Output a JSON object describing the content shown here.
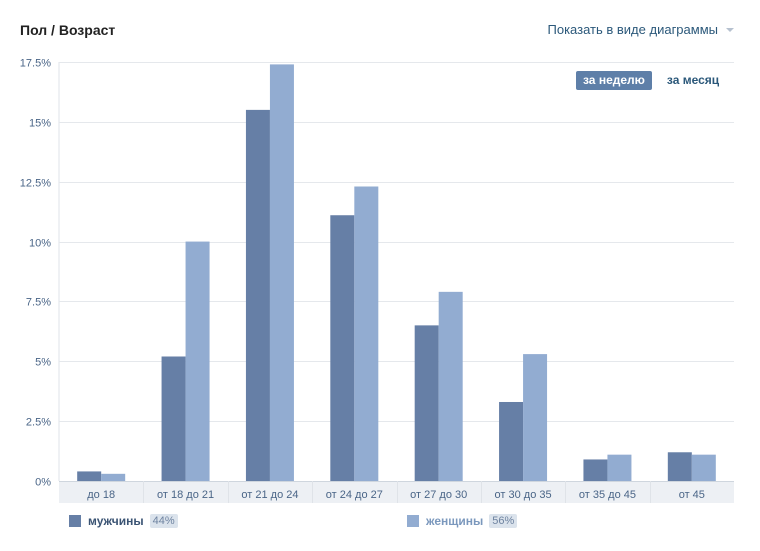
{
  "header": {
    "title": "Пол / Возраст",
    "view_switch_label": "Показать в виде диаграммы"
  },
  "period_tabs": [
    {
      "label": "за неделю",
      "active": true
    },
    {
      "label": "за месяц",
      "active": false
    }
  ],
  "colors": {
    "men": "#667fa6",
    "women": "#92acd1",
    "grid": "#e5e8ec",
    "axis_text": "#4a6587"
  },
  "chart_data": {
    "type": "bar",
    "title": "Пол / Возраст",
    "categories": [
      "до 18",
      "от 18 до 21",
      "от 21 до 24",
      "от 24 до 27",
      "от 27 до 30",
      "от 30 до 35",
      "от 35 до 45",
      "от 45"
    ],
    "series": [
      {
        "name": "мужчины",
        "share": "44%",
        "values": [
          0.4,
          5.2,
          15.5,
          11.1,
          6.5,
          3.3,
          0.9,
          1.2
        ]
      },
      {
        "name": "женщины",
        "share": "56%",
        "values": [
          0.3,
          10.0,
          17.4,
          12.3,
          7.9,
          5.3,
          1.1,
          1.1
        ]
      }
    ],
    "ylim": [
      0,
      17.5
    ],
    "yticks": [
      0,
      2.5,
      5,
      7.5,
      10,
      12.5,
      15,
      17.5
    ],
    "ytick_labels": [
      "0%",
      "2.5%",
      "5%",
      "7.5%",
      "10%",
      "12.5%",
      "15%",
      "17.5%"
    ],
    "grid": true,
    "legend_position": "bottom"
  }
}
